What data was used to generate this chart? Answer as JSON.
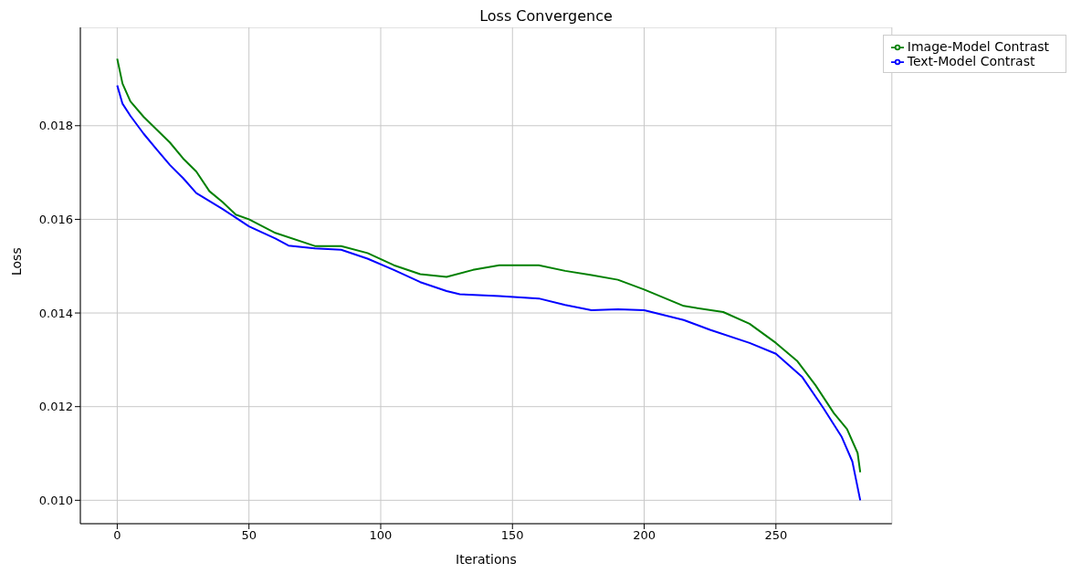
{
  "chart_data": {
    "type": "line",
    "title": "Loss Convergence",
    "xlabel": "Iterations",
    "ylabel": "Loss",
    "xlim": [
      -14,
      294
    ],
    "xticks": [
      0,
      50,
      100,
      150,
      200,
      250
    ],
    "ylim": [
      0.0095,
      0.0201
    ],
    "yticks": [
      {
        "value": 0.01,
        "label": "0.010"
      },
      {
        "value": 0.012,
        "label": "0.012"
      },
      {
        "value": 0.014,
        "label": "0.014"
      },
      {
        "value": 0.016,
        "label": "0.016"
      },
      {
        "value": 0.018,
        "label": "0.018"
      }
    ],
    "grid": true,
    "legend": "top right",
    "marker": "none",
    "line_style": "solid",
    "series": [
      {
        "name": "Image-Model Contrast",
        "color": "#008000",
        "x": [
          0,
          2,
          5,
          10,
          20,
          25,
          30,
          35,
          40,
          45,
          50,
          60,
          75,
          85,
          95,
          105,
          115,
          125,
          135,
          145,
          160,
          170,
          180,
          190,
          200,
          215,
          230,
          240,
          250,
          258,
          265,
          272,
          277,
          281,
          282
        ],
        "values": [
          0.01943,
          0.0189,
          0.01852,
          0.01819,
          0.01764,
          0.0173,
          0.01702,
          0.0166,
          0.01637,
          0.0161,
          0.016,
          0.01571,
          0.01543,
          0.01543,
          0.01528,
          0.01502,
          0.01483,
          0.01477,
          0.01492,
          0.01502,
          0.01502,
          0.0149,
          0.01481,
          0.01471,
          0.0145,
          0.01415,
          0.01402,
          0.01377,
          0.01336,
          0.01298,
          0.01246,
          0.01186,
          0.01152,
          0.01101,
          0.0106
        ]
      },
      {
        "name": "Text-Model Contrast",
        "color": "#0000ff",
        "x": [
          0,
          2,
          5,
          10,
          15,
          20,
          25,
          30,
          40,
          50,
          60,
          65,
          75,
          85,
          95,
          105,
          115,
          125,
          130,
          145,
          160,
          170,
          180,
          190,
          200,
          215,
          225,
          240,
          250,
          260,
          268,
          275,
          279,
          282
        ],
        "values": [
          0.01886,
          0.01847,
          0.01821,
          0.01783,
          0.01749,
          0.01716,
          0.01688,
          0.01656,
          0.01622,
          0.01585,
          0.01559,
          0.01544,
          0.01538,
          0.01535,
          0.01516,
          0.01492,
          0.01466,
          0.01447,
          0.0144,
          0.01436,
          0.01431,
          0.01417,
          0.01406,
          0.01408,
          0.01406,
          0.01385,
          0.01364,
          0.01336,
          0.01313,
          0.01263,
          0.01197,
          0.01135,
          0.01083,
          0.01
        ]
      }
    ]
  }
}
